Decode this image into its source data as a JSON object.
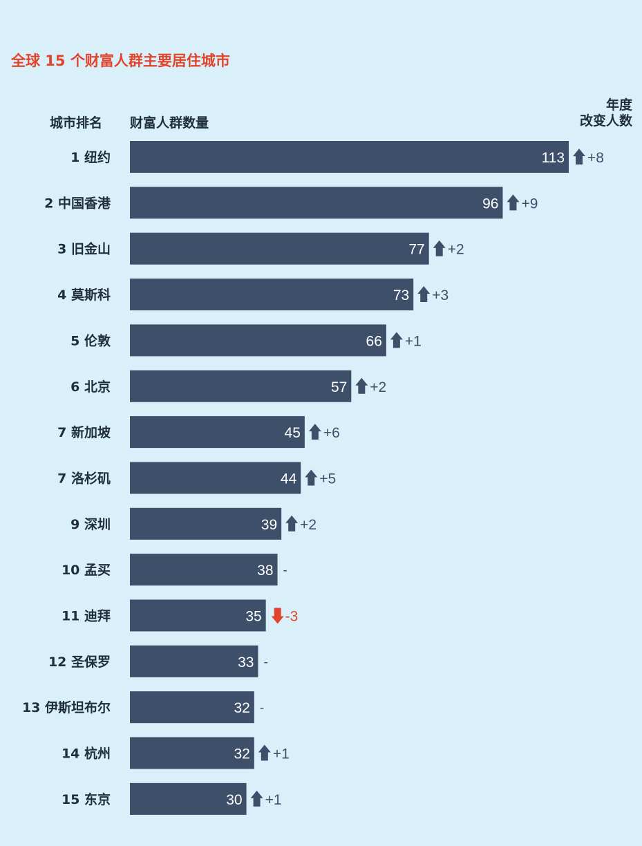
{
  "title": "全球 15 个财富人群主要居住城市",
  "headers": {
    "rank": "城市排名",
    "count": "财富人群数量",
    "change_line1": "年度",
    "change_line2": "改变人数"
  },
  "colors": {
    "background": "#d9f0fb",
    "bar": "#3d4f69",
    "up": "#3d4f69",
    "down": "#e0452b",
    "title": "#e0452b"
  },
  "chart_data": {
    "type": "bar",
    "orientation": "horizontal",
    "categories": [
      "1 纽约",
      "2 中国香港",
      "3 旧金山",
      "4 莫斯科",
      "5 伦敦",
      "6 北京",
      "7 新加坡",
      "7 洛杉矶",
      "9 深圳",
      "10 孟买",
      "11 迪拜",
      "12 圣保罗",
      "13 伊斯坦布尔",
      "14 杭州",
      "15 东京"
    ],
    "values": [
      113,
      96,
      77,
      73,
      66,
      57,
      45,
      44,
      39,
      38,
      35,
      33,
      32,
      32,
      30
    ],
    "changes": [
      "+8",
      "+9",
      "+2",
      "+3",
      "+1",
      "+2",
      "+6",
      "+5",
      "+2",
      "-",
      "-3",
      "-",
      "-",
      "+1",
      "+1"
    ],
    "change_direction": [
      "up",
      "up",
      "up",
      "up",
      "up",
      "up",
      "up",
      "up",
      "up",
      "none",
      "down",
      "none",
      "none",
      "up",
      "up"
    ],
    "xlim": [
      0,
      113
    ],
    "grid": false,
    "legend": "none"
  }
}
